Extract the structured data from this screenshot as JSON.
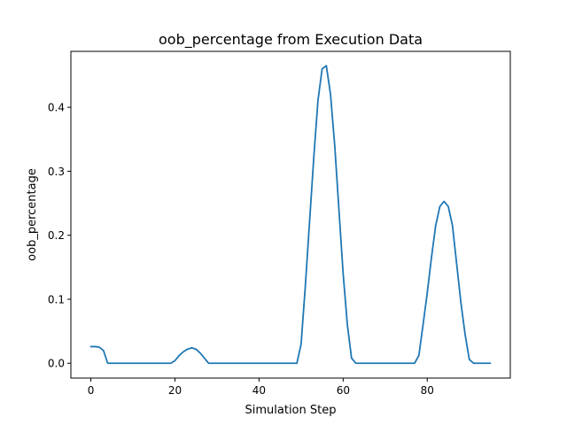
{
  "chart_data": {
    "type": "line",
    "title": "oob_percentage from Execution Data",
    "xlabel": "Simulation Step",
    "ylabel": "oob_percentage",
    "xlim": [
      -4.75,
      99.75
    ],
    "ylim": [
      -0.0232,
      0.4874
    ],
    "xticks": [
      0,
      20,
      40,
      60,
      80
    ],
    "xtick_labels": [
      "0",
      "20",
      "40",
      "60",
      "80"
    ],
    "yticks": [
      0.0,
      0.1,
      0.2,
      0.3,
      0.4
    ],
    "ytick_labels": [
      "0.0",
      "0.1",
      "0.2",
      "0.3",
      "0.4"
    ],
    "grid": false,
    "legend": "none",
    "series": [
      {
        "color": "#1f77b4",
        "x": [
          0,
          1,
          2,
          3,
          4,
          5,
          6,
          7,
          8,
          9,
          10,
          11,
          12,
          13,
          14,
          15,
          16,
          17,
          18,
          19,
          20,
          21,
          22,
          23,
          24,
          25,
          26,
          27,
          28,
          29,
          30,
          31,
          32,
          33,
          34,
          35,
          36,
          37,
          38,
          39,
          40,
          41,
          42,
          43,
          44,
          45,
          46,
          47,
          48,
          49,
          50,
          51,
          52,
          53,
          54,
          55,
          56,
          57,
          58,
          59,
          60,
          61,
          62,
          63,
          64,
          65,
          66,
          67,
          68,
          69,
          70,
          71,
          72,
          73,
          74,
          75,
          76,
          77,
          78,
          79,
          80,
          81,
          82,
          83,
          84,
          85,
          86,
          87,
          88,
          89,
          90,
          91,
          92,
          93,
          94,
          95
        ],
        "y": [
          0.026,
          0.026,
          0.025,
          0.02,
          0,
          0,
          0,
          0,
          0,
          0,
          0,
          0,
          0,
          0,
          0,
          0,
          0,
          0,
          0,
          0,
          0.004,
          0.012,
          0.018,
          0.022,
          0.024,
          0.022,
          0.016,
          0.008,
          0,
          0,
          0,
          0,
          0,
          0,
          0,
          0,
          0,
          0,
          0,
          0,
          0,
          0,
          0,
          0,
          0,
          0,
          0,
          0,
          0,
          0,
          0.03,
          0.12,
          0.22,
          0.32,
          0.41,
          0.46,
          0.465,
          0.42,
          0.34,
          0.24,
          0.14,
          0.06,
          0.008,
          0,
          0,
          0,
          0,
          0,
          0,
          0,
          0,
          0,
          0,
          0,
          0,
          0,
          0,
          0,
          0.012,
          0.06,
          0.11,
          0.165,
          0.215,
          0.245,
          0.253,
          0.245,
          0.215,
          0.155,
          0.095,
          0.045,
          0.006,
          0,
          0,
          0,
          0,
          0
        ]
      }
    ]
  }
}
